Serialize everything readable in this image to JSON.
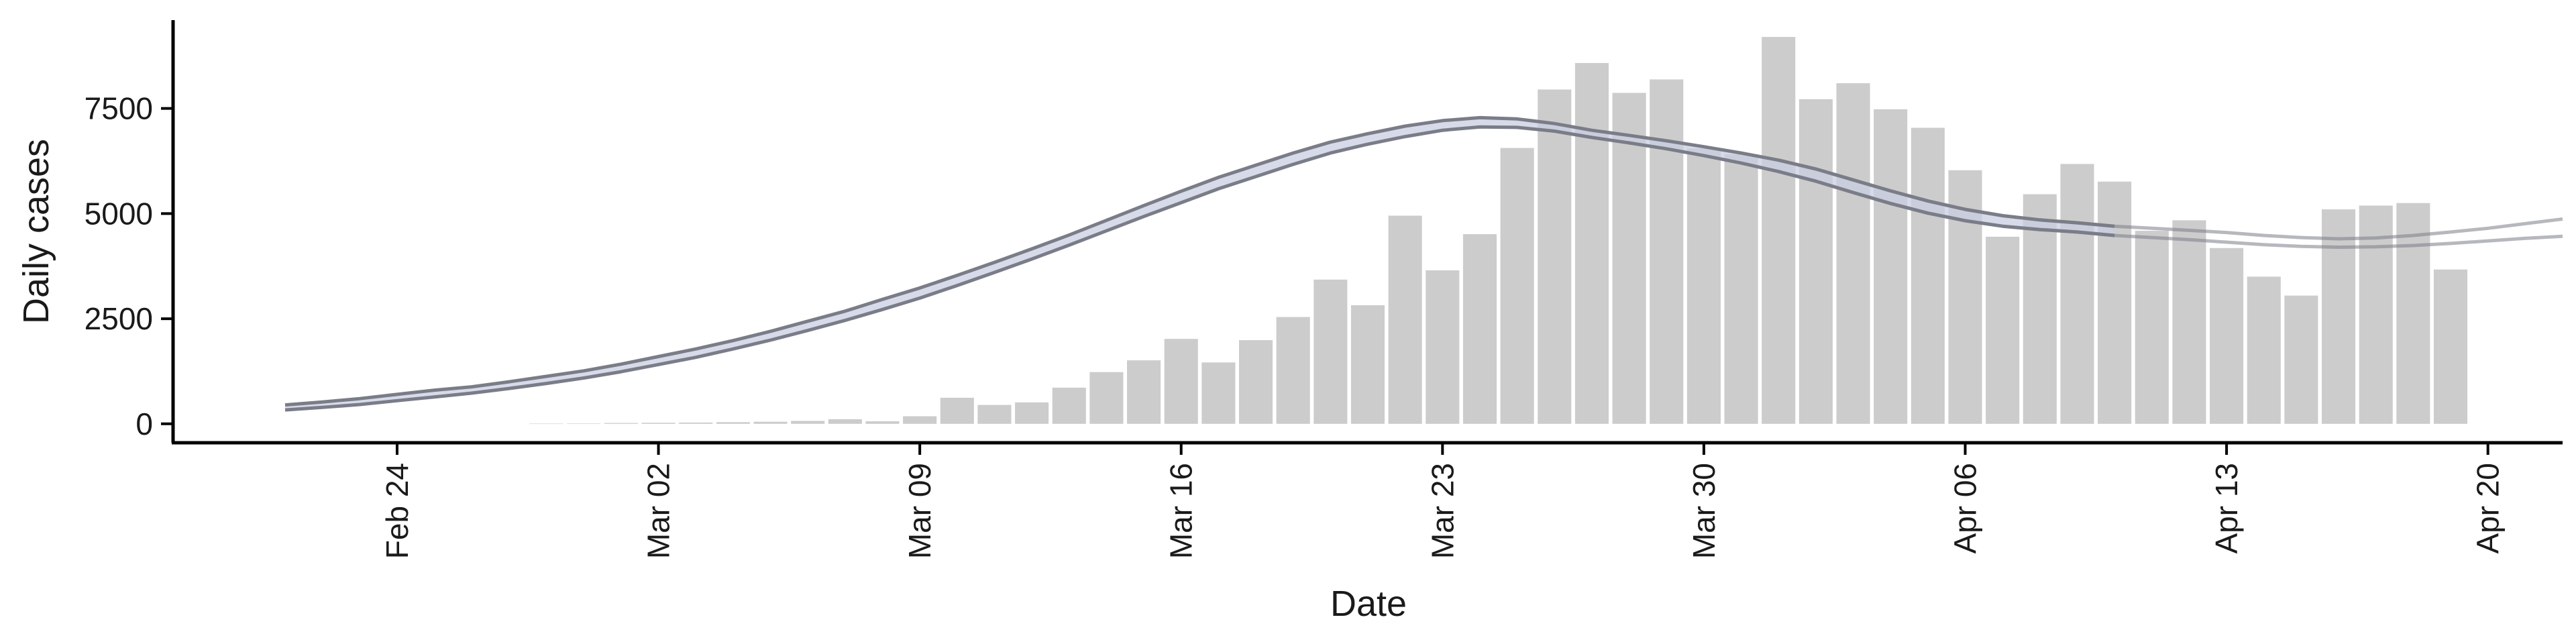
{
  "chart_data": {
    "type": "bar",
    "xlabel": "Date",
    "ylabel": "Daily cases",
    "x_ticks": [
      {
        "date": "2020-02-24",
        "label": "Feb 24"
      },
      {
        "date": "2020-03-02",
        "label": "Mar 02"
      },
      {
        "date": "2020-03-09",
        "label": "Mar 09"
      },
      {
        "date": "2020-03-16",
        "label": "Mar 16"
      },
      {
        "date": "2020-03-23",
        "label": "Mar 23"
      },
      {
        "date": "2020-03-30",
        "label": "Mar 30"
      },
      {
        "date": "2020-04-06",
        "label": "Apr 06"
      },
      {
        "date": "2020-04-13",
        "label": "Apr 13"
      },
      {
        "date": "2020-04-20",
        "label": "Apr 20"
      }
    ],
    "y_ticks": [
      {
        "value": 0,
        "label": "0"
      },
      {
        "value": 2500,
        "label": "2500"
      },
      {
        "value": 5000,
        "label": "5000"
      },
      {
        "value": 7500,
        "label": "7500"
      }
    ],
    "xlim": [
      "2020-02-18",
      "2020-04-22"
    ],
    "ylim": [
      -450,
      9600
    ],
    "bar_color": "#cccccc",
    "line_color": "#7a7d88",
    "band_color": "#c9cee0",
    "bars": {
      "dates": [
        "2020-02-28",
        "2020-02-29",
        "2020-03-01",
        "2020-03-02",
        "2020-03-03",
        "2020-03-04",
        "2020-03-05",
        "2020-03-06",
        "2020-03-07",
        "2020-03-08",
        "2020-03-09",
        "2020-03-10",
        "2020-03-11",
        "2020-03-12",
        "2020-03-13",
        "2020-03-14",
        "2020-03-15",
        "2020-03-16",
        "2020-03-17",
        "2020-03-18",
        "2020-03-19",
        "2020-03-20",
        "2020-03-21",
        "2020-03-22",
        "2020-03-23",
        "2020-03-24",
        "2020-03-25",
        "2020-03-26",
        "2020-03-27",
        "2020-03-28",
        "2020-03-29",
        "2020-03-30",
        "2020-03-31",
        "2020-04-01",
        "2020-04-02",
        "2020-04-03",
        "2020-04-04",
        "2020-04-05",
        "2020-04-06",
        "2020-04-07",
        "2020-04-08",
        "2020-04-09",
        "2020-04-10",
        "2020-04-11",
        "2020-04-12",
        "2020-04-13",
        "2020-04-14",
        "2020-04-15",
        "2020-04-16",
        "2020-04-17",
        "2020-04-18",
        "2020-04-19"
      ],
      "values": [
        5,
        10,
        20,
        25,
        30,
        40,
        50,
        70,
        110,
        60,
        180,
        620,
        450,
        510,
        860,
        1230,
        1510,
        2020,
        1460,
        1990,
        2540,
        3430,
        2820,
        4950,
        3650,
        4510,
        6560,
        7950,
        8580,
        7870,
        8190,
        6550,
        6410,
        9200,
        7720,
        8100,
        7480,
        7040,
        6030,
        4450,
        5460,
        6180,
        5760,
        4590,
        4840,
        4180,
        3500,
        3050,
        5100,
        5190,
        5250,
        3670
      ]
    },
    "curves": [
      {
        "dates": [
          "2020-02-21",
          "2020-02-22",
          "2020-02-23",
          "2020-02-24",
          "2020-02-25",
          "2020-02-26",
          "2020-02-27",
          "2020-02-28",
          "2020-02-29",
          "2020-03-01",
          "2020-03-02",
          "2020-03-03",
          "2020-03-04",
          "2020-03-05",
          "2020-03-06",
          "2020-03-07",
          "2020-03-08",
          "2020-03-09",
          "2020-03-10",
          "2020-03-11",
          "2020-03-12",
          "2020-03-13",
          "2020-03-14",
          "2020-03-15",
          "2020-03-16",
          "2020-03-17",
          "2020-03-18",
          "2020-03-19",
          "2020-03-20",
          "2020-03-21",
          "2020-03-22",
          "2020-03-23",
          "2020-03-24",
          "2020-03-25",
          "2020-03-26",
          "2020-03-27",
          "2020-03-28",
          "2020-03-29",
          "2020-03-30",
          "2020-03-31",
          "2020-04-01",
          "2020-04-02",
          "2020-04-03",
          "2020-04-04",
          "2020-04-05",
          "2020-04-06",
          "2020-04-07",
          "2020-04-08",
          "2020-04-09",
          "2020-04-10"
        ],
        "values": [
          450,
          520,
          600,
          700,
          800,
          880,
          1000,
          1130,
          1260,
          1420,
          1600,
          1780,
          1980,
          2200,
          2440,
          2680,
          2960,
          3230,
          3530,
          3840,
          4160,
          4490,
          4840,
          5190,
          5530,
          5860,
          6150,
          6440,
          6700,
          6900,
          7080,
          7210,
          7280,
          7250,
          7140,
          6980,
          6860,
          6730,
          6590,
          6440,
          6270,
          6060,
          5800,
          5540,
          5300,
          5100,
          4950,
          4850,
          4780,
          4700
        ]
      },
      {
        "dates": [
          "2020-02-21",
          "2020-02-22",
          "2020-02-23",
          "2020-02-24",
          "2020-02-25",
          "2020-02-26",
          "2020-02-27",
          "2020-02-28",
          "2020-02-29",
          "2020-03-01",
          "2020-03-02",
          "2020-03-03",
          "2020-03-04",
          "2020-03-05",
          "2020-03-06",
          "2020-03-07",
          "2020-03-08",
          "2020-03-09",
          "2020-03-10",
          "2020-03-11",
          "2020-03-12",
          "2020-03-13",
          "2020-03-14",
          "2020-03-15",
          "2020-03-16",
          "2020-03-17",
          "2020-03-18",
          "2020-03-19",
          "2020-03-20",
          "2020-03-21",
          "2020-03-22",
          "2020-03-23",
          "2020-03-24",
          "2020-03-25",
          "2020-03-26",
          "2020-03-27",
          "2020-03-28",
          "2020-03-29",
          "2020-03-30",
          "2020-03-31",
          "2020-04-01",
          "2020-04-02",
          "2020-04-03",
          "2020-04-04",
          "2020-04-05",
          "2020-04-06",
          "2020-04-07",
          "2020-04-08",
          "2020-04-09",
          "2020-04-10"
        ],
        "values": [
          330,
          390,
          460,
          550,
          640,
          730,
          840,
          960,
          1090,
          1240,
          1410,
          1580,
          1780,
          1990,
          2220,
          2460,
          2720,
          2990,
          3290,
          3600,
          3920,
          4250,
          4590,
          4930,
          5260,
          5590,
          5880,
          6170,
          6440,
          6650,
          6830,
          6980,
          7060,
          7050,
          6960,
          6810,
          6680,
          6540,
          6380,
          6200,
          6000,
          5770,
          5500,
          5240,
          5010,
          4830,
          4700,
          4620,
          4560,
          4480
        ]
      },
      {
        "dates": [
          "2020-04-01",
          "2020-04-02",
          "2020-04-03",
          "2020-04-04",
          "2020-04-05",
          "2020-04-06",
          "2020-04-07",
          "2020-04-08",
          "2020-04-09",
          "2020-04-10",
          "2020-04-11",
          "2020-04-12",
          "2020-04-13",
          "2020-04-14",
          "2020-04-15",
          "2020-04-16",
          "2020-04-17",
          "2020-04-18",
          "2020-04-19",
          "2020-04-20",
          "2020-04-21",
          "2020-04-22"
        ],
        "values": [
          6270,
          6060,
          5800,
          5540,
          5300,
          5100,
          4950,
          4850,
          4780,
          4700,
          4650,
          4600,
          4550,
          4480,
          4430,
          4400,
          4420,
          4480,
          4560,
          4650,
          4760,
          4870
        ]
      },
      {
        "dates": [
          "2020-04-01",
          "2020-04-02",
          "2020-04-03",
          "2020-04-04",
          "2020-04-05",
          "2020-04-06",
          "2020-04-07",
          "2020-04-08",
          "2020-04-09",
          "2020-04-10",
          "2020-04-11",
          "2020-04-12",
          "2020-04-13",
          "2020-04-14",
          "2020-04-15",
          "2020-04-16",
          "2020-04-17",
          "2020-04-18",
          "2020-04-19",
          "2020-04-20",
          "2020-04-21",
          "2020-04-22"
        ],
        "values": [
          6000,
          5770,
          5500,
          5240,
          5010,
          4830,
          4700,
          4620,
          4560,
          4480,
          4430,
          4380,
          4320,
          4260,
          4220,
          4200,
          4210,
          4240,
          4290,
          4350,
          4410,
          4460
        ]
      }
    ]
  }
}
